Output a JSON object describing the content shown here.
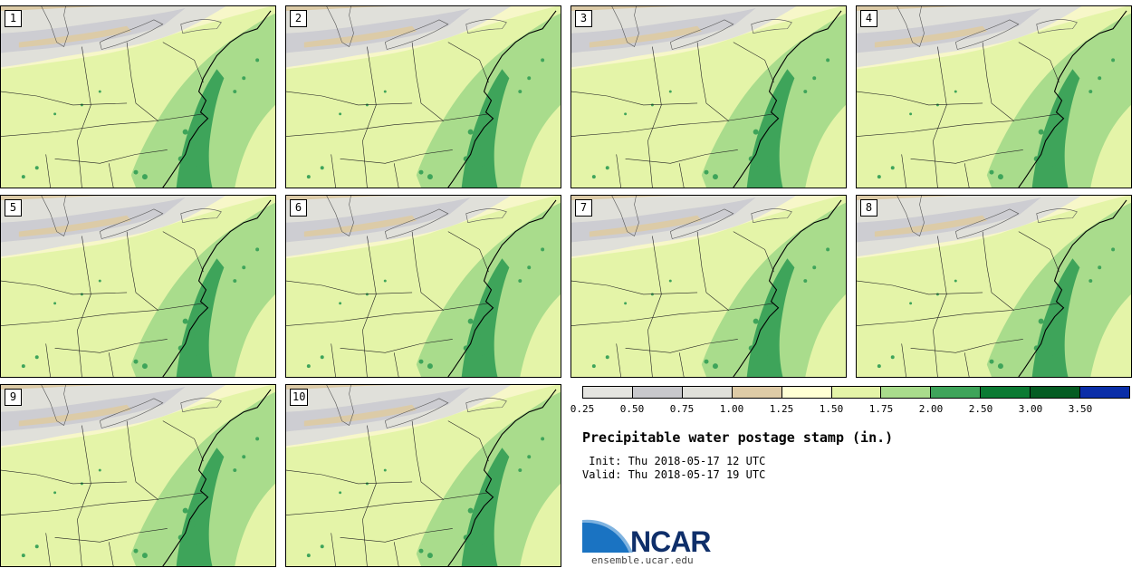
{
  "panels": [
    {
      "label": "1"
    },
    {
      "label": "2"
    },
    {
      "label": "3"
    },
    {
      "label": "4"
    },
    {
      "label": "5"
    },
    {
      "label": "6"
    },
    {
      "label": "7"
    },
    {
      "label": "8"
    },
    {
      "label": "9"
    },
    {
      "label": "10"
    }
  ],
  "legend": {
    "colors": [
      "#e4e4e0",
      "#c8c8cc",
      "#e0e0da",
      "#decba6",
      "#ffffd4",
      "#e4f4a8",
      "#a9dc8c",
      "#3ea45a",
      "#0b7a33",
      "#055c23",
      "#0a2ea8"
    ],
    "ticks": [
      "0.25",
      "0.50",
      "0.75",
      "1.00",
      "1.25",
      "1.50",
      "1.75",
      "2.00",
      "2.50",
      "3.00",
      "3.50"
    ]
  },
  "title": "Precipitable water postage stamp (in.)",
  "init_line": " Init: Thu 2018-05-17 12 UTC",
  "valid_line": "Valid: Thu 2018-05-17 19 UTC",
  "logo": {
    "text": "NCAR",
    "site": "ensemble.ucar.edu"
  },
  "map_colors": {
    "dry_gray": "#cdcdd2",
    "light_gray": "#e0e0da",
    "tan": "#dccba7",
    "pale_yellow": "#f7f7c9",
    "lime": "#e4f4a8",
    "light_green": "#a9dc8c",
    "green": "#3ea45a",
    "dark_green": "#0b7a33"
  }
}
